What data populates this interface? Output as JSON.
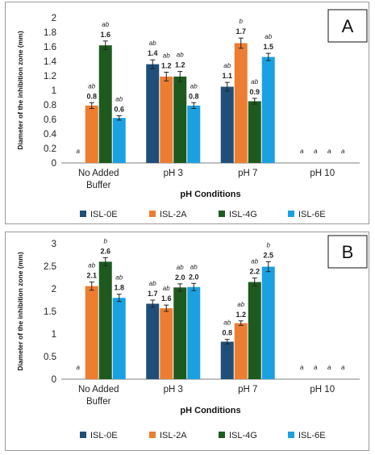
{
  "colors": {
    "ISL-0E": "#1f4e79",
    "ISL-2A": "#ed7d31",
    "ISL-4G": "#1e5a1e",
    "ISL-6E": "#1ba1e2"
  },
  "chart_data": [
    {
      "type": "bar",
      "panel_label": "A",
      "categories": [
        "No Added Buffer",
        "pH 3",
        "pH 7",
        "pH 10"
      ],
      "category_lines": [
        [
          "No Added",
          "Buffer"
        ],
        [
          "pH 3"
        ],
        [
          "pH 7"
        ],
        [
          "pH 10"
        ]
      ],
      "xlabel": "pH Conditions",
      "ylabel": "Diameter of the inhibition zone (mm)",
      "ylim": [
        0,
        2
      ],
      "yticks": [
        "0",
        "0.2",
        "0.4",
        "0.6",
        "0.8",
        "1",
        "1.2",
        "1.4",
        "1.6",
        "1.8",
        "2"
      ],
      "yticks_values": [
        0,
        0.2,
        0.4,
        0.6,
        0.8,
        1,
        1.2,
        1.4,
        1.6,
        1.8,
        2
      ],
      "legend_position": "bottom",
      "series": [
        {
          "name": "ISL-0E",
          "values": [
            0,
            1.36,
            1.05,
            0
          ],
          "errors": [
            0,
            0.06,
            0.06,
            0
          ],
          "labels": [
            "",
            "1.4",
            "1.1",
            ""
          ],
          "sig": [
            "a",
            "ab",
            "ab",
            "a"
          ]
        },
        {
          "name": "ISL-2A",
          "values": [
            0.79,
            1.19,
            1.65,
            0
          ],
          "errors": [
            0.04,
            0.06,
            0.07,
            0
          ],
          "labels": [
            "0.8",
            "1.2",
            "1.7",
            ""
          ],
          "sig": [
            "ab",
            "ab",
            "b",
            "a"
          ]
        },
        {
          "name": "ISL-4G",
          "values": [
            1.62,
            1.19,
            0.85,
            0
          ],
          "errors": [
            0.06,
            0.07,
            0.04,
            0
          ],
          "labels": [
            "1.6",
            "1.2",
            "0.9",
            ""
          ],
          "sig": [
            "ab",
            "ab",
            "ab",
            "a"
          ]
        },
        {
          "name": "ISL-6E",
          "values": [
            0.62,
            0.79,
            1.46,
            0
          ],
          "errors": [
            0.03,
            0.04,
            0.05,
            0
          ],
          "labels": [
            "0.6",
            "0.8",
            "1.5",
            ""
          ],
          "sig": [
            "ab",
            "ab",
            "ab",
            "a"
          ]
        }
      ]
    },
    {
      "type": "bar",
      "panel_label": "B",
      "categories": [
        "No Added Buffer",
        "pH 3",
        "pH 7",
        "pH 10"
      ],
      "category_lines": [
        [
          "No Added",
          "Buffer"
        ],
        [
          "pH 3"
        ],
        [
          "pH 7"
        ],
        [
          "pH 10"
        ]
      ],
      "xlabel": "pH Conditions",
      "ylabel": "Diameter of the inhibition zone (mm)",
      "ylim": [
        0,
        3
      ],
      "yticks": [
        "0",
        "0.5",
        "1",
        "1.5",
        "2",
        "2.5",
        "3"
      ],
      "yticks_values": [
        0,
        0.5,
        1,
        1.5,
        2,
        2.5,
        3
      ],
      "legend_position": "bottom",
      "series": [
        {
          "name": "ISL-0E",
          "values": [
            0,
            1.67,
            0.83,
            0
          ],
          "errors": [
            0,
            0.08,
            0.05,
            0
          ],
          "labels": [
            "",
            "1.7",
            "0.8",
            ""
          ],
          "sig": [
            "a",
            "ab",
            "ab",
            "a"
          ]
        },
        {
          "name": "ISL-2A",
          "values": [
            2.06,
            1.57,
            1.24,
            0
          ],
          "errors": [
            0.09,
            0.07,
            0.05,
            0
          ],
          "labels": [
            "2.1",
            "1.6",
            "1.2",
            ""
          ],
          "sig": [
            "ab",
            "ab",
            "ab",
            "a"
          ]
        },
        {
          "name": "ISL-4G",
          "values": [
            2.6,
            2.03,
            2.15,
            0
          ],
          "errors": [
            0.09,
            0.08,
            0.09,
            0
          ],
          "labels": [
            "2.6",
            "2.0",
            "2.2",
            ""
          ],
          "sig": [
            "b",
            "ab",
            "ab",
            "a"
          ]
        },
        {
          "name": "ISL-6E",
          "values": [
            1.8,
            2.04,
            2.49,
            0
          ],
          "errors": [
            0.08,
            0.08,
            0.11,
            0
          ],
          "labels": [
            "1.8",
            "2.0",
            "2.5",
            ""
          ],
          "sig": [
            "ab",
            "ab",
            "b",
            "a"
          ]
        }
      ]
    }
  ]
}
